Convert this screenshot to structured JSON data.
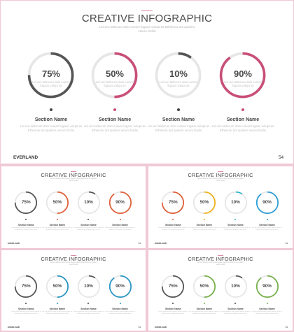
{
  "title": "CREATIVE INFOGRAPHIC",
  "subtitle_line1": "Lid ven latlocum dolo cumes fugaos volupt as Ethierutu ant quidem",
  "subtitle_line2": "velum faciliti",
  "brand": "EVERLAND",
  "page_number": "54",
  "section_name": "Section Name",
  "section_text_line1": "Lid ven latlocum dolo cumes fugaos volupt as",
  "section_text_line2": "Ethierutu ant quidem verum facilis",
  "ring_text_line1": "Lid ven latlocum dolo cumes",
  "ring_text_line2": "fugaos volupt as",
  "items": [
    {
      "label": "75%",
      "value": 0.75
    },
    {
      "label": "50%",
      "value": 0.5
    },
    {
      "label": "10%",
      "value": 0.1
    },
    {
      "label": "90%",
      "value": 0.9
    }
  ],
  "color_variants": [
    {
      "name": "main-pink",
      "colors": [
        "#555555",
        "#c94f77",
        "#555555",
        "#c94f77"
      ],
      "dots": [
        "#444444",
        "#c94f77",
        "#444444",
        "#c94f77"
      ]
    },
    {
      "name": "orange",
      "colors": [
        "#555555",
        "#e0603a",
        "#555555",
        "#e0603a"
      ],
      "dots": [
        "#444444",
        "#e0603a",
        "#444444",
        "#e0603a"
      ]
    },
    {
      "name": "multicolor",
      "colors": [
        "#e0603a",
        "#f0b21b",
        "#2bb4c9",
        "#2e9ed6"
      ],
      "dots": [
        "#e0603a",
        "#f0b21b",
        "#2bb4c9",
        "#2e9ed6"
      ]
    },
    {
      "name": "blue",
      "colors": [
        "#555555",
        "#2a96c4",
        "#555555",
        "#2a96c4"
      ],
      "dots": [
        "#444444",
        "#2a96c4",
        "#444444",
        "#2a96c4"
      ]
    },
    {
      "name": "green",
      "colors": [
        "#555555",
        "#76b14b",
        "#555555",
        "#76b14b"
      ],
      "dots": [
        "#444444",
        "#76b14b",
        "#444444",
        "#76b14b"
      ]
    }
  ],
  "track_color": "#e6e6e6"
}
